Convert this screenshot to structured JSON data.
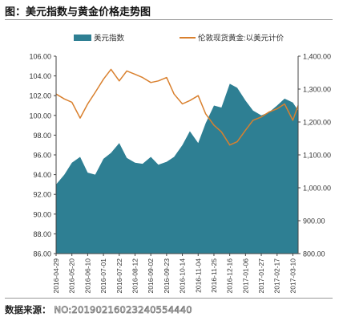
{
  "page": {
    "title": "图：美元指数与黄金价格走势图",
    "source_label": "数据来源：",
    "watermark": "NO:20190216023240554440"
  },
  "colors": {
    "teal": "#2e7f93",
    "orange": "#d9802e",
    "axis": "#444444"
  },
  "chart_data": {
    "type": "area+line",
    "legend_position": "top",
    "grid": false,
    "series": [
      {
        "name": "美元指数",
        "kind": "area",
        "axis": "left",
        "color": "#2e7f93",
        "dates": [
          "2016-04-29",
          "2016-05-10",
          "2016-05-20",
          "2016-05-31",
          "2016-06-10",
          "2016-06-20",
          "2016-07-01",
          "2016-07-11",
          "2016-07-22",
          "2016-08-01",
          "2016-08-12",
          "2016-08-22",
          "2016-09-02",
          "2016-09-12",
          "2016-09-23",
          "2016-10-03",
          "2016-10-14",
          "2016-10-24",
          "2016-11-04",
          "2016-11-14",
          "2016-11-25",
          "2016-12-05",
          "2016-12-16",
          "2016-12-26",
          "2017-01-06",
          "2017-01-16",
          "2017-01-27",
          "2017-02-06",
          "2017-02-17",
          "2017-02-27",
          "2017-03-10",
          "2017-03-17"
        ],
        "values": [
          93.0,
          94.0,
          95.2,
          95.8,
          94.2,
          94.0,
          95.6,
          96.2,
          97.2,
          95.7,
          95.2,
          95.1,
          95.8,
          95.0,
          95.3,
          95.8,
          97.0,
          98.4,
          97.2,
          99.2,
          101.0,
          100.8,
          103.2,
          102.8,
          101.5,
          100.5,
          100.0,
          100.3,
          101.0,
          101.7,
          101.3,
          100.5
        ]
      },
      {
        "name": "伦敦现货黄金:以美元计价",
        "kind": "line",
        "axis": "right",
        "color": "#d9802e",
        "dates": [
          "2016-04-29",
          "2016-05-10",
          "2016-05-20",
          "2016-05-31",
          "2016-06-10",
          "2016-06-20",
          "2016-07-01",
          "2016-07-11",
          "2016-07-22",
          "2016-08-01",
          "2016-08-12",
          "2016-08-22",
          "2016-09-02",
          "2016-09-12",
          "2016-09-23",
          "2016-10-03",
          "2016-10-14",
          "2016-10-24",
          "2016-11-04",
          "2016-11-14",
          "2016-11-25",
          "2016-12-05",
          "2016-12-16",
          "2016-12-26",
          "2017-01-06",
          "2017-01-16",
          "2017-01-27",
          "2017-02-06",
          "2017-02-17",
          "2017-02-27",
          "2017-03-10",
          "2017-03-17"
        ],
        "values": [
          1285,
          1270,
          1260,
          1212,
          1255,
          1290,
          1330,
          1360,
          1325,
          1355,
          1345,
          1335,
          1320,
          1325,
          1335,
          1285,
          1255,
          1265,
          1280,
          1225,
          1190,
          1170,
          1130,
          1140,
          1175,
          1205,
          1215,
          1230,
          1240,
          1255,
          1205,
          1250
        ]
      }
    ],
    "y_left": {
      "min": 86,
      "max": 106,
      "ticks": [
        "86.00",
        "88.00",
        "90.00",
        "92.00",
        "94.00",
        "96.00",
        "98.00",
        "100.00",
        "102.00",
        "104.00",
        "106.00"
      ]
    },
    "y_right": {
      "min": 800,
      "max": 1400,
      "ticks": [
        "800.00",
        "900.00",
        "1,000.00",
        "1,100.00",
        "1,200.00",
        "1,300.00",
        "1,400.00"
      ]
    },
    "x_tick_labels": [
      "2016-04-29",
      "2016-05-20",
      "2016-06-10",
      "2016-07-01",
      "2016-07-22",
      "2016-08-12",
      "2016-09-02",
      "2016-09-23",
      "2016-10-14",
      "2016-11-04",
      "2016-11-25",
      "2016-12-16",
      "2017-01-06",
      "2017-01-27",
      "2017-02-17",
      "2017-03-10"
    ]
  }
}
